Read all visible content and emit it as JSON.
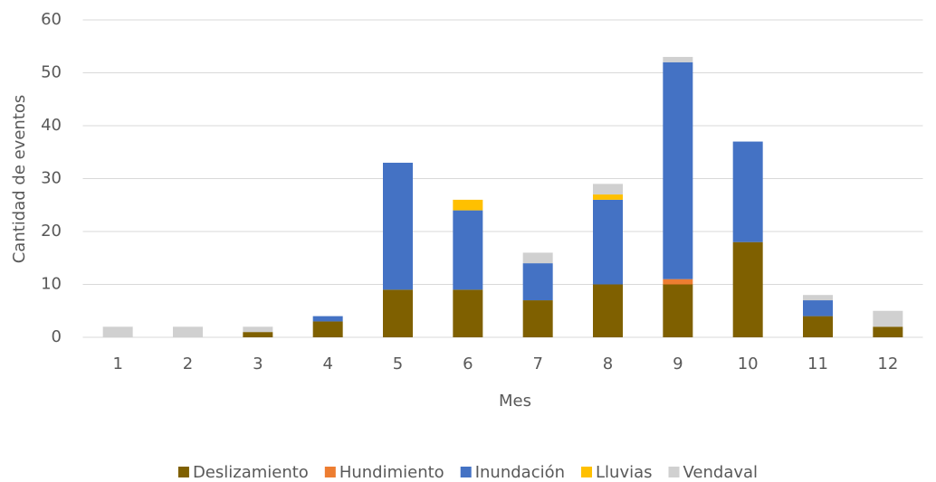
{
  "chart_data": {
    "type": "stacked_bar",
    "x_label": "Mes",
    "y_label": "Cantidad de eventos",
    "categories": [
      "1",
      "2",
      "3",
      "4",
      "5",
      "6",
      "7",
      "8",
      "9",
      "10",
      "11",
      "12"
    ],
    "series": [
      {
        "name": "Deslizamiento",
        "color": "#7f6000",
        "values": [
          0,
          0,
          1,
          3,
          9,
          9,
          7,
          10,
          10,
          18,
          4,
          2
        ]
      },
      {
        "name": "Hundimiento",
        "color": "#ed7d31",
        "values": [
          0,
          0,
          0,
          0,
          0,
          0,
          0,
          0,
          1,
          0,
          0,
          0
        ]
      },
      {
        "name": "Inundación",
        "color": "#4472c4",
        "values": [
          0,
          0,
          0,
          1,
          24,
          15,
          7,
          16,
          41,
          19,
          3,
          0
        ]
      },
      {
        "name": "Lluvias",
        "color": "#ffc000",
        "values": [
          0,
          0,
          0,
          0,
          0,
          2,
          0,
          1,
          0,
          0,
          0,
          0
        ]
      },
      {
        "name": "Vendaval",
        "color": "#d0d0d0",
        "values": [
          2,
          2,
          1,
          0,
          0,
          0,
          2,
          2,
          1,
          0,
          1,
          3
        ]
      }
    ],
    "ylim": [
      0,
      60
    ],
    "yticks": [
      0,
      10,
      20,
      30,
      40,
      50,
      60
    ],
    "grid": true,
    "legend": "bottom"
  }
}
